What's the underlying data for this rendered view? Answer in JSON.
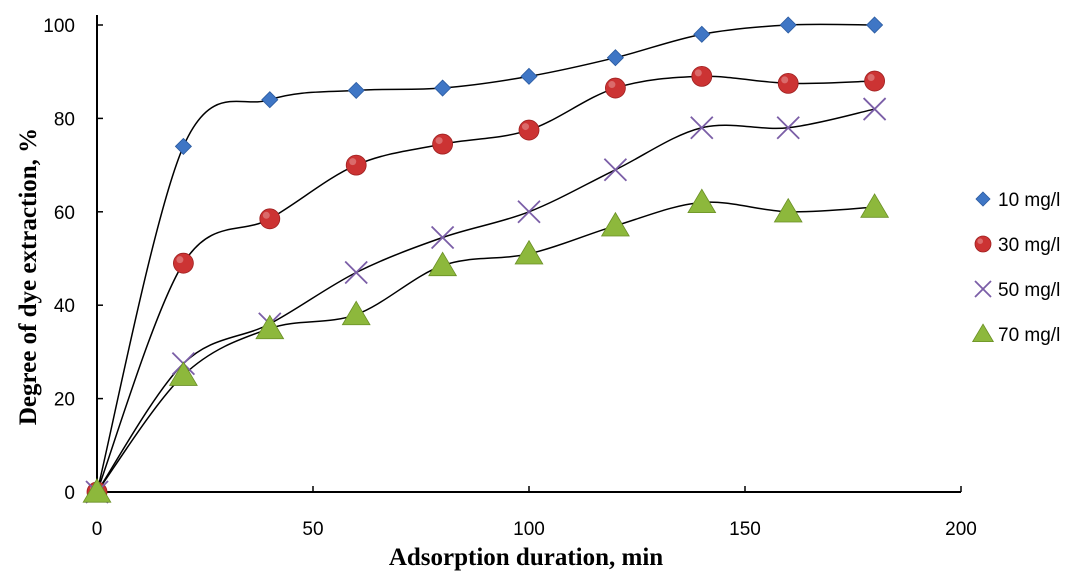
{
  "chart_data": {
    "type": "scatter",
    "title": "",
    "xlabel": "Adsorption duration,  min",
    "ylabel": "Degree of dye extraction, %",
    "xlim": [
      0,
      200
    ],
    "ylim": [
      0,
      100
    ],
    "x_ticks": [
      "0",
      "50",
      "100",
      "150",
      "200"
    ],
    "y_ticks": [
      "0",
      "20",
      "40",
      "60",
      "80",
      "100"
    ],
    "grid": false,
    "legend_position": "right",
    "trendlines": true,
    "series": [
      {
        "name": "10 mg/l",
        "marker": "diamond",
        "color": "#3f76c5",
        "x": [
          0,
          20,
          40,
          60,
          80,
          100,
          120,
          140,
          160,
          180
        ],
        "y": [
          0,
          74,
          84,
          86,
          86.5,
          89,
          93,
          98,
          100,
          100
        ]
      },
      {
        "name": "30 mg/l",
        "marker": "circle",
        "color": "#cc3333",
        "x": [
          0,
          20,
          40,
          60,
          80,
          100,
          120,
          140,
          160,
          180
        ],
        "y": [
          0,
          49,
          58.5,
          70,
          74.5,
          77.5,
          86.5,
          89,
          87.5,
          88
        ]
      },
      {
        "name": "50 mg/l",
        "marker": "x",
        "color": "#7b5ea7",
        "x": [
          0,
          20,
          40,
          60,
          80,
          100,
          120,
          140,
          160,
          180
        ],
        "y": [
          0,
          27.5,
          36,
          47,
          54.5,
          60,
          69,
          78,
          78,
          82
        ]
      },
      {
        "name": "70 mg/l",
        "marker": "triangle",
        "color": "#8db83c",
        "x": [
          0,
          20,
          40,
          60,
          80,
          100,
          120,
          140,
          160,
          180
        ],
        "y": [
          0,
          25,
          35,
          38,
          48.5,
          51,
          57,
          62,
          60,
          61
        ]
      }
    ]
  }
}
